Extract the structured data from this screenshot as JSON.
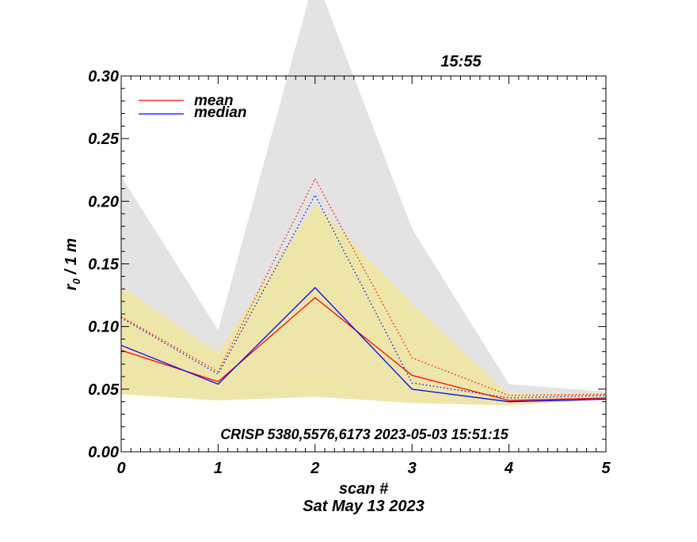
{
  "chart_data": {
    "type": "line",
    "title": "15:55",
    "xlabel": "scan #",
    "ylabel_main": "r",
    "ylabel_sub": "0",
    "ylabel_rest": " / 1 m",
    "date_label": "Sat May 13 2023",
    "annotation": "CRISP 5380,5576,6173 2023-05-03 15:51:15",
    "xlim": [
      0,
      5
    ],
    "ylim": [
      0.0,
      0.3
    ],
    "x_ticks": [
      0,
      1,
      2,
      3,
      4,
      5
    ],
    "x_tick_labels": [
      "0",
      "1",
      "2",
      "3",
      "4",
      "5"
    ],
    "y_ticks": [
      0.0,
      0.05,
      0.1,
      0.15,
      0.2,
      0.25,
      0.3
    ],
    "y_tick_labels": [
      "0.00",
      "0.05",
      "0.10",
      "0.15",
      "0.20",
      "0.25",
      "0.30"
    ],
    "x": [
      0,
      1,
      2,
      3,
      4,
      5
    ],
    "bands": [
      {
        "kind": "outer-range",
        "color": "#e3e3e3",
        "lower": [
          0.046,
          0.041,
          0.044,
          0.039,
          0.037,
          0.042
        ],
        "upper": [
          0.22,
          0.097,
          0.38,
          0.178,
          0.054,
          0.048
        ]
      },
      {
        "kind": "inner-range",
        "color": "#eee6a9",
        "lower": [
          0.046,
          0.041,
          0.044,
          0.039,
          0.037,
          0.042
        ],
        "upper": [
          0.132,
          0.079,
          0.198,
          0.118,
          0.046,
          0.046
        ]
      }
    ],
    "series": [
      {
        "name": "mean",
        "color": "#ff0000",
        "style": "solid",
        "values": [
          0.081,
          0.056,
          0.123,
          0.061,
          0.041,
          0.043
        ]
      },
      {
        "name": "median",
        "color": "#0000ff",
        "style": "solid",
        "values": [
          0.085,
          0.054,
          0.131,
          0.05,
          0.04,
          0.042
        ]
      },
      {
        "name": "",
        "color": "#ff0000",
        "style": "dotted",
        "values": [
          0.108,
          0.064,
          0.218,
          0.075,
          0.045,
          0.046
        ]
      },
      {
        "name": "",
        "color": "#0000ff",
        "style": "dotted",
        "values": [
          0.107,
          0.062,
          0.205,
          0.055,
          0.043,
          0.045
        ]
      }
    ],
    "legend_position": "top-left"
  }
}
